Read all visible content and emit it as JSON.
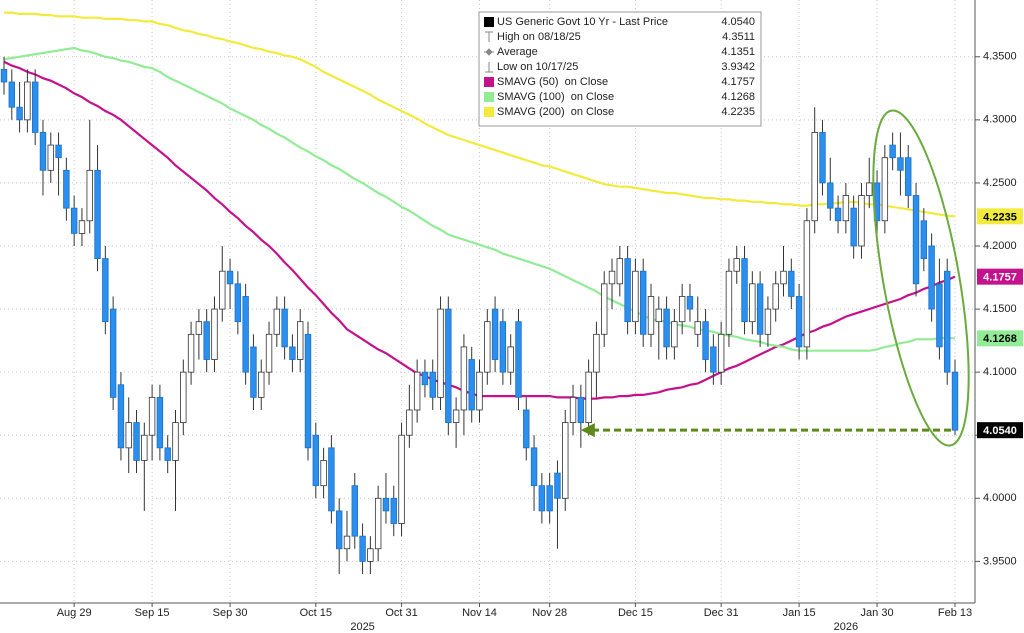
{
  "chart_data": {
    "type": "candlestick",
    "categories": [
      null,
      null,
      null,
      null,
      null,
      null,
      null,
      null,
      null,
      "Aug 29",
      null,
      null,
      null,
      null,
      null,
      null,
      null,
      null,
      null,
      "Sep 15",
      null,
      null,
      null,
      null,
      null,
      null,
      null,
      null,
      null,
      "Sep 30",
      null,
      null,
      null,
      null,
      null,
      null,
      null,
      null,
      null,
      null,
      "Oct 15",
      null,
      null,
      null,
      null,
      null,
      null,
      null,
      null,
      null,
      null,
      "Oct 31",
      null,
      null,
      null,
      null,
      null,
      null,
      null,
      null,
      null,
      "Nov 14",
      null,
      null,
      null,
      null,
      null,
      null,
      null,
      null,
      "Nov 28",
      null,
      null,
      null,
      null,
      null,
      null,
      null,
      null,
      null,
      null,
      "Dec 15",
      null,
      null,
      null,
      null,
      null,
      null,
      null,
      null,
      null,
      null,
      "Dec 31",
      null,
      null,
      null,
      null,
      null,
      null,
      null,
      null,
      null,
      "Jan 15",
      null,
      null,
      null,
      null,
      null,
      null,
      null,
      null,
      null,
      "Jan 30",
      null,
      null,
      null,
      null,
      null,
      null,
      null,
      null,
      null,
      "Feb 13"
    ],
    "year_labels": [
      null,
      null,
      null,
      null,
      null,
      null,
      null,
      null,
      null,
      null,
      null,
      null,
      null,
      null,
      null,
      null,
      null,
      null,
      null,
      null,
      null,
      null,
      null,
      null,
      null,
      null,
      null,
      null,
      null,
      null,
      null,
      null,
      null,
      null,
      null,
      null,
      null,
      null,
      null,
      null,
      null,
      null,
      null,
      null,
      null,
      null,
      "2025",
      null,
      null,
      null,
      null,
      null,
      null,
      null,
      null,
      null,
      null,
      null,
      null,
      null,
      null,
      null,
      null,
      null,
      null,
      null,
      null,
      null,
      null,
      null,
      null,
      null,
      null,
      null,
      null,
      null,
      null,
      null,
      null,
      null,
      null,
      null,
      null,
      null,
      null,
      null,
      null,
      null,
      null,
      null,
      null,
      null,
      null,
      null,
      null,
      null,
      null,
      null,
      null,
      null,
      null,
      null,
      null,
      null,
      null,
      null,
      null,
      null,
      "2026",
      null,
      null,
      null,
      null,
      null,
      null,
      null,
      null,
      null,
      null,
      null,
      null,
      null,
      null
    ],
    "open": [
      4.34,
      4.33,
      4.31,
      4.3,
      4.33,
      4.29,
      4.26,
      4.28,
      4.26,
      4.23,
      4.21,
      4.22,
      4.26,
      4.19,
      4.15,
      4.09,
      4.04,
      4.06,
      4.03,
      4.05,
      4.08,
      4.04,
      4.03,
      4.06,
      4.1,
      4.13,
      4.14,
      4.11,
      4.15,
      4.18,
      4.17,
      4.16,
      4.12,
      4.08,
      4.1,
      4.13,
      4.15,
      4.12,
      4.11,
      4.13,
      4.05,
      4.01,
      4.04,
      3.99,
      3.96,
      4.01,
      3.97,
      3.95,
      3.96,
      4.0,
      4.0,
      3.98,
      4.05,
      4.07,
      4.1,
      4.1,
      4.08,
      4.15,
      4.06,
      4.07,
      4.11,
      4.07,
      4.1,
      4.15,
      4.14,
      4.1,
      4.14,
      4.07,
      4.04,
      4.01,
      4.01,
      4.02,
      4.0,
      4.06,
      4.08,
      4.06,
      4.1,
      4.13,
      4.17,
      4.17,
      4.19,
      4.14,
      4.18,
      4.13,
      4.14,
      4.15,
      4.12,
      4.14,
      4.16,
      4.13,
      4.14,
      4.12,
      4.1,
      4.13,
      4.18,
      4.19,
      4.14,
      4.17,
      4.13,
      4.15,
      4.17,
      4.18,
      4.16,
      4.12,
      4.22,
      4.29,
      4.25,
      4.23,
      4.22,
      4.23,
      4.2,
      4.24,
      4.25,
      4.22,
      4.28,
      4.27,
      4.27,
      4.24,
      4.22,
      4.2,
      4.17,
      4.18,
      4.1
    ],
    "high": [
      4.35,
      4.34,
      4.33,
      4.34,
      4.34,
      4.3,
      4.29,
      4.29,
      4.27,
      4.24,
      4.23,
      4.3,
      4.28,
      4.2,
      4.16,
      4.1,
      4.08,
      4.07,
      4.06,
      4.09,
      4.09,
      4.05,
      4.07,
      4.11,
      4.14,
      4.15,
      4.15,
      4.16,
      4.2,
      4.19,
      4.18,
      4.17,
      4.13,
      4.11,
      4.14,
      4.16,
      4.16,
      4.13,
      4.15,
      4.14,
      4.06,
      4.04,
      4.05,
      4.0,
      3.99,
      4.02,
      3.98,
      3.97,
      4.01,
      4.02,
      4.01,
      4.06,
      4.09,
      4.11,
      4.11,
      4.11,
      4.16,
      4.16,
      4.08,
      4.13,
      4.12,
      4.11,
      4.15,
      4.16,
      4.15,
      4.13,
      4.15,
      4.08,
      4.05,
      4.02,
      4.02,
      4.03,
      4.07,
      4.09,
      4.09,
      4.11,
      4.14,
      4.18,
      4.19,
      4.2,
      4.2,
      4.19,
      4.19,
      4.17,
      4.16,
      4.16,
      4.15,
      4.17,
      4.17,
      4.16,
      4.15,
      4.13,
      4.14,
      4.19,
      4.2,
      4.2,
      4.18,
      4.18,
      4.16,
      4.18,
      4.2,
      4.19,
      4.17,
      4.23,
      4.31,
      4.3,
      4.27,
      4.24,
      4.25,
      4.24,
      4.25,
      4.27,
      4.26,
      4.28,
      4.29,
      4.29,
      4.28,
      4.25,
      4.23,
      4.21,
      4.19,
      4.19,
      4.11
    ],
    "low": [
      4.32,
      4.3,
      4.29,
      4.29,
      4.28,
      4.24,
      4.25,
      4.24,
      4.22,
      4.2,
      4.2,
      4.21,
      4.18,
      4.13,
      4.07,
      4.03,
      4.02,
      4.02,
      3.99,
      4.03,
      4.03,
      4.02,
      3.99,
      4.05,
      4.09,
      4.11,
      4.1,
      4.1,
      4.14,
      4.15,
      4.13,
      4.09,
      4.07,
      4.07,
      4.09,
      4.12,
      4.11,
      4.1,
      4.1,
      4.03,
      4.0,
      4.0,
      3.98,
      3.94,
      3.95,
      3.96,
      3.94,
      3.94,
      3.95,
      3.98,
      3.97,
      3.97,
      4.04,
      4.06,
      4.08,
      4.07,
      4.07,
      4.05,
      4.04,
      4.05,
      4.06,
      4.06,
      4.09,
      4.1,
      4.09,
      4.09,
      4.07,
      4.03,
      3.99,
      3.98,
      3.98,
      3.96,
      3.99,
      4.05,
      4.04,
      4.05,
      4.08,
      4.12,
      4.15,
      4.16,
      4.13,
      4.13,
      4.12,
      4.12,
      4.11,
      4.11,
      4.11,
      4.13,
      4.14,
      4.12,
      4.1,
      4.09,
      4.09,
      4.12,
      4.17,
      4.13,
      4.13,
      4.12,
      4.12,
      4.14,
      4.16,
      4.15,
      4.11,
      4.11,
      4.21,
      4.24,
      4.22,
      4.21,
      4.21,
      4.19,
      4.19,
      4.23,
      4.21,
      4.21,
      4.26,
      4.24,
      4.23,
      4.16,
      4.18,
      4.14,
      4.11,
      4.09,
      4.05
    ],
    "close": [
      4.33,
      4.31,
      4.3,
      4.33,
      4.29,
      4.26,
      4.28,
      4.27,
      4.23,
      4.21,
      4.22,
      4.26,
      4.19,
      4.14,
      4.08,
      4.04,
      4.06,
      4.03,
      4.05,
      4.08,
      4.04,
      4.03,
      4.06,
      4.1,
      4.13,
      4.14,
      4.11,
      4.15,
      4.18,
      4.17,
      4.14,
      4.1,
      4.08,
      4.1,
      4.13,
      4.15,
      4.12,
      4.11,
      4.14,
      4.04,
      4.01,
      4.03,
      3.99,
      3.96,
      3.97,
      3.97,
      3.95,
      3.96,
      4.0,
      3.99,
      3.98,
      4.05,
      4.07,
      4.1,
      4.09,
      4.08,
      4.15,
      4.06,
      4.07,
      4.12,
      4.07,
      4.1,
      4.14,
      4.11,
      4.1,
      4.12,
      4.08,
      4.04,
      4.01,
      3.99,
      3.99,
      4.0,
      4.06,
      4.08,
      4.06,
      4.1,
      4.13,
      4.17,
      4.18,
      4.19,
      4.14,
      4.18,
      4.13,
      4.16,
      4.15,
      4.12,
      4.14,
      4.16,
      4.15,
      4.14,
      4.11,
      4.1,
      4.13,
      4.18,
      4.19,
      4.14,
      4.17,
      4.13,
      4.15,
      4.17,
      4.18,
      4.16,
      4.12,
      4.22,
      4.29,
      4.25,
      4.23,
      4.22,
      4.24,
      4.2,
      4.24,
      4.25,
      4.22,
      4.27,
      4.27,
      4.26,
      4.24,
      4.17,
      4.19,
      4.15,
      4.12,
      4.1,
      4.054
    ],
    "last_close_label": "4.0540",
    "up_color": "#ffffff",
    "down_color": "#2b8ff0",
    "series": [
      {
        "name": "SMAVG (50)  on Close",
        "color": "#c4128c",
        "last_label": "4.1757",
        "values": [
          4.346,
          4.343,
          4.341,
          4.338,
          4.336,
          4.333,
          4.331,
          4.328,
          4.325,
          4.321,
          4.318,
          4.314,
          4.311,
          4.307,
          4.304,
          4.3,
          4.295,
          4.29,
          4.285,
          4.28,
          4.275,
          4.27,
          4.264,
          4.259,
          4.254,
          4.249,
          4.244,
          4.238,
          4.233,
          4.227,
          4.222,
          4.216,
          4.211,
          4.205,
          4.2,
          4.194,
          4.187,
          4.181,
          4.174,
          4.167,
          4.161,
          4.154,
          4.147,
          4.141,
          4.134,
          4.13,
          4.126,
          4.122,
          4.118,
          4.115,
          4.111,
          4.107,
          4.103,
          4.099,
          4.097,
          4.094,
          4.092,
          4.09,
          4.088,
          4.085,
          4.083,
          4.081,
          4.081,
          4.081,
          4.081,
          4.081,
          4.081,
          4.081,
          4.081,
          4.081,
          4.081,
          4.08,
          4.08,
          4.08,
          4.079,
          4.079,
          4.079,
          4.08,
          4.08,
          4.081,
          4.081,
          4.082,
          4.082,
          4.083,
          4.084,
          4.086,
          4.087,
          4.088,
          4.09,
          4.091,
          4.094,
          4.097,
          4.1,
          4.103,
          4.105,
          4.108,
          4.111,
          4.114,
          4.117,
          4.12,
          4.122,
          4.125,
          4.128,
          4.131,
          4.133,
          4.136,
          4.138,
          4.141,
          4.144,
          4.146,
          4.148,
          4.15,
          4.152,
          4.154,
          4.156,
          4.158,
          4.161,
          4.163,
          4.166,
          4.168,
          4.171,
          4.173,
          4.1757
        ]
      },
      {
        "name": "SMAVG (100)  on Close",
        "color": "#92ec96",
        "last_label": "4.1268",
        "values": [
          4.348,
          4.349,
          4.35,
          4.351,
          4.352,
          4.353,
          4.354,
          4.355,
          4.356,
          4.357,
          4.355,
          4.354,
          4.352,
          4.35,
          4.349,
          4.347,
          4.346,
          4.344,
          4.342,
          4.341,
          4.338,
          4.334,
          4.331,
          4.328,
          4.325,
          4.322,
          4.319,
          4.316,
          4.313,
          4.309,
          4.306,
          4.303,
          4.3,
          4.296,
          4.293,
          4.289,
          4.286,
          4.282,
          4.278,
          4.275,
          4.271,
          4.268,
          4.264,
          4.261,
          4.257,
          4.253,
          4.25,
          4.246,
          4.242,
          4.239,
          4.235,
          4.231,
          4.228,
          4.224,
          4.22,
          4.216,
          4.213,
          4.209,
          4.207,
          4.205,
          4.203,
          4.201,
          4.199,
          4.197,
          4.194,
          4.192,
          4.19,
          4.188,
          4.186,
          4.184,
          4.182,
          4.179,
          4.176,
          4.173,
          4.17,
          4.167,
          4.164,
          4.16,
          4.157,
          4.154,
          4.151,
          4.148,
          4.145,
          4.142,
          4.141,
          4.14,
          4.138,
          4.137,
          4.136,
          4.134,
          4.133,
          4.132,
          4.13,
          4.129,
          4.128,
          4.126,
          4.125,
          4.124,
          4.122,
          4.121,
          4.12,
          4.118,
          4.117,
          4.117,
          4.117,
          4.117,
          4.117,
          4.117,
          4.117,
          4.117,
          4.117,
          4.117,
          4.118,
          4.12,
          4.121,
          4.123,
          4.124,
          4.126,
          4.126,
          4.126,
          4.127,
          4.127,
          4.1268
        ]
      },
      {
        "name": "SMAVG (200)  on Close",
        "color": "#f2ea3c",
        "last_label": "4.2235",
        "values": [
          4.385,
          4.385,
          4.384,
          4.384,
          4.384,
          4.383,
          4.383,
          4.382,
          4.382,
          4.382,
          4.381,
          4.381,
          4.381,
          4.38,
          4.38,
          4.38,
          4.379,
          4.379,
          4.378,
          4.378,
          4.376,
          4.375,
          4.373,
          4.371,
          4.37,
          4.368,
          4.367,
          4.365,
          4.364,
          4.362,
          4.361,
          4.359,
          4.357,
          4.356,
          4.354,
          4.353,
          4.351,
          4.35,
          4.348,
          4.345,
          4.342,
          4.338,
          4.335,
          4.332,
          4.329,
          4.326,
          4.323,
          4.32,
          4.316,
          4.313,
          4.31,
          4.307,
          4.304,
          4.301,
          4.297,
          4.294,
          4.291,
          4.288,
          4.286,
          4.284,
          4.282,
          4.28,
          4.278,
          4.276,
          4.274,
          4.272,
          4.27,
          4.268,
          4.266,
          4.264,
          4.263,
          4.261,
          4.259,
          4.257,
          4.255,
          4.253,
          4.251,
          4.249,
          4.248,
          4.247,
          4.247,
          4.246,
          4.245,
          4.244,
          4.243,
          4.242,
          4.242,
          4.241,
          4.24,
          4.239,
          4.238,
          4.238,
          4.237,
          4.237,
          4.236,
          4.236,
          4.235,
          4.235,
          4.234,
          4.234,
          4.233,
          4.233,
          4.232,
          4.232,
          4.233,
          4.233,
          4.234,
          4.234,
          4.235,
          4.235,
          4.234,
          4.233,
          4.233,
          4.232,
          4.231,
          4.23,
          4.229,
          4.228,
          4.227,
          4.226,
          4.225,
          4.224,
          4.2235
        ]
      }
    ],
    "legend": [
      {
        "label": "US Generic Govt 10 Yr - Last Price",
        "value": "4.0540",
        "marker": "square",
        "color": "#000000"
      },
      {
        "label": "High on 08/18/25",
        "value": "4.3511",
        "marker": "high",
        "color": "#888888"
      },
      {
        "label": "Average",
        "value": "4.1351",
        "marker": "average",
        "color": "#888888"
      },
      {
        "label": "Low on 10/17/25",
        "value": "3.9342",
        "marker": "low",
        "color": "#888888"
      }
    ],
    "ylim": [
      3.917,
      4.395
    ],
    "yticks": [
      {
        "value": 3.95,
        "label": "3.9500"
      },
      {
        "value": 4.0,
        "label": "4.0000"
      },
      {
        "value": 4.05,
        "label": "4.0500"
      },
      {
        "value": 4.1,
        "label": "4.1000"
      },
      {
        "value": 4.15,
        "label": "4.1500"
      },
      {
        "value": 4.2,
        "label": "4.2000"
      },
      {
        "value": 4.25,
        "label": "4.2500"
      },
      {
        "value": 4.3,
        "label": "4.3000"
      },
      {
        "value": 4.35,
        "label": "4.3500"
      }
    ],
    "grid": true,
    "annotation_color": "#5e8a1a"
  }
}
